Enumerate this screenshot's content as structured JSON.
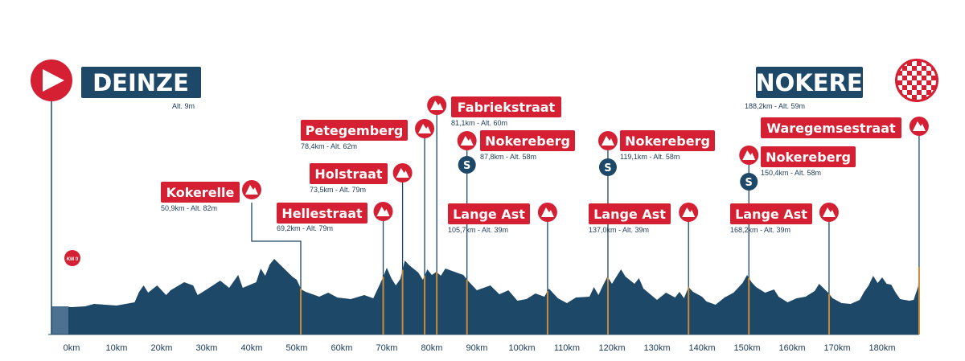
{
  "colors": {
    "profile": "#1d4868",
    "red": "#d51f33",
    "navy": "#1d4868",
    "text": "#1c3a5a",
    "marker": "#c88a3a",
    "white": "#ffffff"
  },
  "chart_data": {
    "type": "area",
    "title": "",
    "xlabel": "",
    "ylabel": "",
    "xlim": [
      0,
      193
    ],
    "x_ticks": [
      "0km",
      "10km",
      "20km",
      "30km",
      "40km",
      "50km",
      "60km",
      "70km",
      "80km",
      "90km",
      "100km",
      "110km",
      "120km",
      "130km",
      "140km",
      "150km",
      "160km",
      "170km",
      "180km"
    ],
    "profile": [
      [
        -2,
        10
      ],
      [
        0,
        9
      ],
      [
        3,
        10
      ],
      [
        5,
        13
      ],
      [
        10,
        11
      ],
      [
        14,
        15
      ],
      [
        15,
        28
      ],
      [
        16,
        36
      ],
      [
        17,
        27
      ],
      [
        19,
        36
      ],
      [
        21,
        24
      ],
      [
        22,
        30
      ],
      [
        25,
        40
      ],
      [
        27,
        36
      ],
      [
        28,
        24
      ],
      [
        30,
        31
      ],
      [
        33,
        42
      ],
      [
        35,
        33
      ],
      [
        37,
        49
      ],
      [
        38,
        33
      ],
      [
        41,
        40
      ],
      [
        42,
        57
      ],
      [
        43,
        48
      ],
      [
        44,
        62
      ],
      [
        45,
        69
      ],
      [
        47,
        58
      ],
      [
        49,
        47
      ],
      [
        50,
        43
      ],
      [
        51,
        31
      ],
      [
        52,
        28
      ],
      [
        55,
        22
      ],
      [
        57,
        27
      ],
      [
        59,
        21
      ],
      [
        62,
        19
      ],
      [
        65,
        24
      ],
      [
        67,
        20
      ],
      [
        69,
        44
      ],
      [
        70,
        58
      ],
      [
        71,
        45
      ],
      [
        72,
        36
      ],
      [
        73,
        44
      ],
      [
        74,
        67
      ],
      [
        75,
        61
      ],
      [
        77,
        52
      ],
      [
        78,
        43
      ],
      [
        79,
        56
      ],
      [
        80,
        49
      ],
      [
        81,
        53
      ],
      [
        82,
        48
      ],
      [
        83,
        57
      ],
      [
        85,
        53
      ],
      [
        87,
        49
      ],
      [
        88,
        42
      ],
      [
        90,
        30
      ],
      [
        93,
        36
      ],
      [
        95,
        25
      ],
      [
        97,
        30
      ],
      [
        99,
        17
      ],
      [
        101,
        19
      ],
      [
        103,
        26
      ],
      [
        105,
        22
      ],
      [
        106,
        32
      ],
      [
        107,
        26
      ],
      [
        108,
        20
      ],
      [
        110,
        14
      ],
      [
        112,
        21
      ],
      [
        115,
        22
      ],
      [
        116,
        34
      ],
      [
        117,
        24
      ],
      [
        118,
        36
      ],
      [
        119,
        47
      ],
      [
        120,
        38
      ],
      [
        122,
        56
      ],
      [
        123,
        47
      ],
      [
        125,
        38
      ],
      [
        126,
        45
      ],
      [
        127,
        32
      ],
      [
        130,
        18
      ],
      [
        132,
        27
      ],
      [
        134,
        21
      ],
      [
        135,
        28
      ],
      [
        136,
        20
      ],
      [
        137,
        34
      ],
      [
        138,
        28
      ],
      [
        140,
        22
      ],
      [
        141,
        16
      ],
      [
        143,
        12
      ],
      [
        145,
        21
      ],
      [
        147,
        27
      ],
      [
        149,
        39
      ],
      [
        150,
        49
      ],
      [
        151,
        40
      ],
      [
        152,
        34
      ],
      [
        154,
        27
      ],
      [
        156,
        31
      ],
      [
        157,
        22
      ],
      [
        159,
        15
      ],
      [
        161,
        20
      ],
      [
        163,
        22
      ],
      [
        165,
        29
      ],
      [
        166,
        38
      ],
      [
        168,
        27
      ],
      [
        169,
        20
      ],
      [
        171,
        14
      ],
      [
        173,
        13
      ],
      [
        175,
        18
      ],
      [
        176,
        28
      ],
      [
        177,
        36
      ],
      [
        178,
        48
      ],
      [
        179,
        39
      ],
      [
        180,
        46
      ],
      [
        181,
        38
      ],
      [
        182,
        37
      ],
      [
        183,
        27
      ],
      [
        184,
        19
      ],
      [
        186,
        17
      ],
      [
        187,
        18
      ],
      [
        188,
        35
      ],
      [
        188.2,
        59
      ]
    ],
    "start": {
      "name": "DEINZE",
      "altitude": "Alt. 9m"
    },
    "finish": {
      "name": "NOKERE",
      "detail": "188,2km - Alt. 59m"
    },
    "km0_badge": "KM 0",
    "climbs": [
      {
        "name": "Kokerelle",
        "km": 50.9,
        "detail": "50,9km - Alt. 82m"
      },
      {
        "name": "Hellestraat",
        "km": 69.2,
        "detail": "69,2km - Alt. 79m"
      },
      {
        "name": "Holstraat",
        "km": 73.5,
        "detail": "73,5km - Alt. 79m"
      },
      {
        "name": "Petegemberg",
        "km": 78.4,
        "detail": "78,4km - Alt. 62m"
      },
      {
        "name": "Fabriekstraat",
        "km": 81.1,
        "detail": "81,1km - Alt. 60m"
      },
      {
        "name": "Nokereberg",
        "km": 87.8,
        "detail": "87,8km - Alt. 58m",
        "sprint": "S"
      },
      {
        "name": "Lange Ast",
        "km": 105.7,
        "detail": "105,7km - Alt. 39m"
      },
      {
        "name": "Nokereberg",
        "km": 119.1,
        "detail": "119,1km - Alt. 58m",
        "sprint": "S"
      },
      {
        "name": "Lange Ast",
        "km": 137.0,
        "detail": "137,0km - Alt. 39m"
      },
      {
        "name": "Nokereberg",
        "km": 150.4,
        "detail": "150,4km - Alt. 58m",
        "sprint": "S"
      },
      {
        "name": "Lange Ast",
        "km": 168.2,
        "detail": "168,2km - Alt. 39m"
      },
      {
        "name": "Waregemsestraat",
        "km": 188.2,
        "detail": ""
      }
    ]
  }
}
